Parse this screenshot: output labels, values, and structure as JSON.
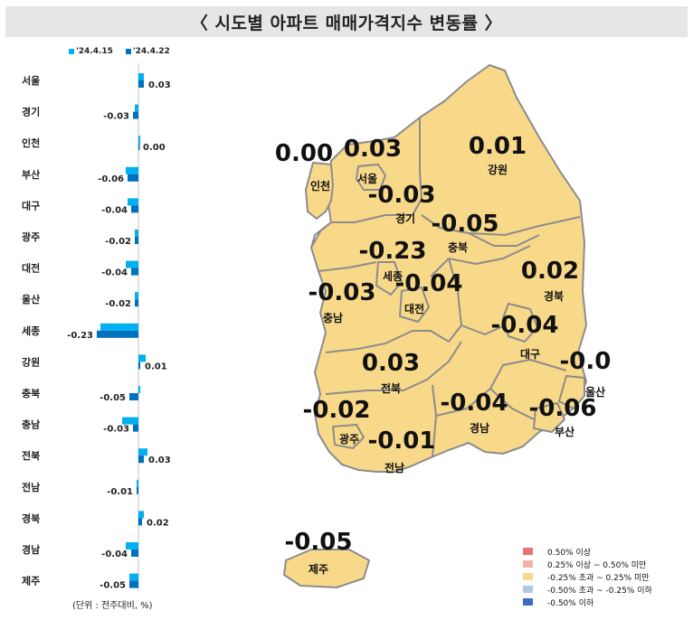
{
  "title": "〈 시도별 아파트 매매가격지수 변동률 〉",
  "unit_note": "(단위 : 전주대비, %)",
  "chart_data": {
    "type": "bar",
    "orientation": "horizontal",
    "categories": [
      "서울",
      "경기",
      "인천",
      "부산",
      "대구",
      "광주",
      "대전",
      "울산",
      "세종",
      "강원",
      "충북",
      "충남",
      "전북",
      "전남",
      "경북",
      "경남",
      "제주"
    ],
    "series": [
      {
        "name": "'24.4.15",
        "color": "#00b0f0",
        "values": [
          0.03,
          -0.02,
          0.01,
          -0.07,
          -0.06,
          -0.02,
          -0.07,
          -0.02,
          -0.21,
          0.04,
          0.01,
          -0.09,
          0.05,
          -0.01,
          0.03,
          -0.07,
          -0.05
        ]
      },
      {
        "name": "'24.4.22",
        "color": "#0070c0",
        "values": [
          0.03,
          -0.03,
          0.0,
          -0.06,
          -0.04,
          -0.02,
          -0.04,
          -0.02,
          -0.23,
          0.01,
          -0.05,
          -0.03,
          0.03,
          -0.01,
          0.02,
          -0.04,
          -0.05
        ]
      }
    ],
    "data_labels": [
      "0.03",
      "-0.03",
      "0.00",
      "-0.06",
      "-0.04",
      "-0.02",
      "-0.04",
      "-0.02",
      "-0.23",
      "0.01",
      "-0.05",
      "-0.03",
      "0.03",
      "-0.01",
      "0.02",
      "-0.04",
      "-0.05"
    ],
    "legend_position": "top"
  },
  "map": {
    "regions": [
      {
        "name": "서울",
        "value": "0.03"
      },
      {
        "name": "경기",
        "value": "-0.03"
      },
      {
        "name": "인천",
        "value": "0.00"
      },
      {
        "name": "강원",
        "value": "0.01"
      },
      {
        "name": "충북",
        "value": "-0.05"
      },
      {
        "name": "세종",
        "value": "-0.23"
      },
      {
        "name": "충남",
        "value": "-0.03"
      },
      {
        "name": "대전",
        "value": "-0.04"
      },
      {
        "name": "경북",
        "value": "0.02"
      },
      {
        "name": "대구",
        "value": "-0.04"
      },
      {
        "name": "전북",
        "value": "0.03"
      },
      {
        "name": "울산",
        "value": "-0.02"
      },
      {
        "name": "광주",
        "value": "-0.02"
      },
      {
        "name": "전남",
        "value": "-0.01"
      },
      {
        "name": "경남",
        "value": "-0.04"
      },
      {
        "name": "부산",
        "value": "-0.06"
      },
      {
        "name": "제주",
        "value": "-0.05"
      }
    ],
    "fill_color": "#f8d98a",
    "border_color": "#8c8c8c"
  },
  "map_legend": [
    {
      "label": "0.50% 이상",
      "color": "#e87474"
    },
    {
      "label": "0.25% 이상 ~ 0.50% 미만",
      "color": "#f2b3a8"
    },
    {
      "label": "-0.25% 초과 ~ 0.25% 미만",
      "color": "#f8d98a"
    },
    {
      "label": "-0.50% 초과 ~ -0.25% 이하",
      "color": "#b4c6e7"
    },
    {
      "label": "-0.50% 이하",
      "color": "#3d6cc4"
    }
  ]
}
